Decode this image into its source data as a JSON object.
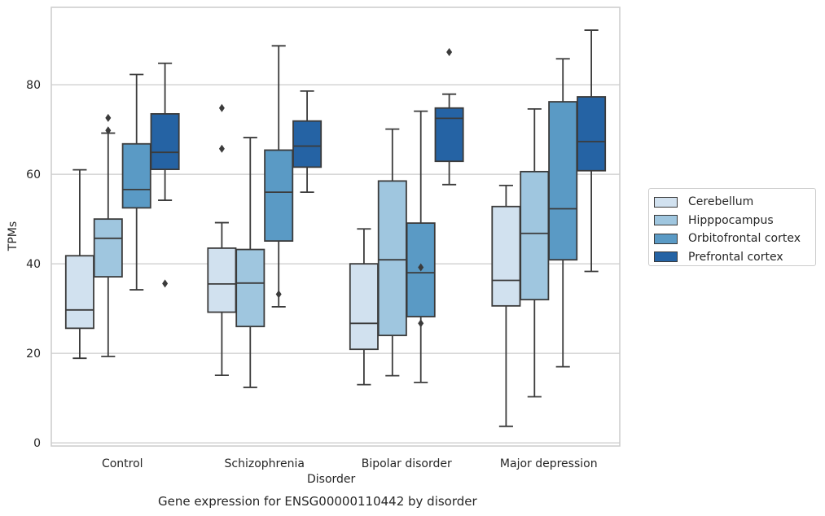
{
  "chart_data": {
    "type": "box",
    "title": "",
    "caption": "Gene expression for ENSG00000110442 by disorder",
    "xlabel": "Disorder",
    "ylabel": "TPMs",
    "ylim": [
      -0.7,
      97.3
    ],
    "yticks": [
      0,
      20,
      40,
      60,
      80
    ],
    "grid": "horizontal",
    "legend_position": "right",
    "categories": [
      "Control",
      "Schizophrenia",
      "Bipolar disorder",
      "Major depression"
    ],
    "series": [
      {
        "name": "Cerebellum",
        "color": "#d1e1ef",
        "boxes": [
          {
            "whisker_low": 18.9,
            "q1": 25.6,
            "median": 29.7,
            "q3": 41.8,
            "whisker_high": 61.0,
            "outliers": []
          },
          {
            "whisker_low": 15.1,
            "q1": 29.2,
            "median": 35.5,
            "q3": 43.5,
            "whisker_high": 49.2,
            "outliers": [
              74.8,
              65.7
            ]
          },
          {
            "whisker_low": 13.0,
            "q1": 20.9,
            "median": 26.7,
            "q3": 40.0,
            "whisker_high": 47.8,
            "outliers": []
          },
          {
            "whisker_low": 3.7,
            "q1": 30.6,
            "median": 36.3,
            "q3": 52.8,
            "whisker_high": 57.5,
            "outliers": []
          }
        ]
      },
      {
        "name": "Hipppocampus",
        "color": "#9fc6df",
        "boxes": [
          {
            "whisker_low": 19.3,
            "q1": 37.1,
            "median": 45.7,
            "q3": 50.0,
            "whisker_high": 69.2,
            "outliers": [
              72.6,
              69.8
            ]
          },
          {
            "whisker_low": 12.4,
            "q1": 26.0,
            "median": 35.7,
            "q3": 43.2,
            "whisker_high": 68.2,
            "outliers": []
          },
          {
            "whisker_low": 15.0,
            "q1": 24.0,
            "median": 40.9,
            "q3": 58.5,
            "whisker_high": 70.1,
            "outliers": []
          },
          {
            "whisker_low": 10.3,
            "q1": 32.0,
            "median": 46.8,
            "q3": 60.6,
            "whisker_high": 74.6,
            "outliers": []
          }
        ]
      },
      {
        "name": "Orbitofrontal cortex",
        "color": "#5a9ac5",
        "boxes": [
          {
            "whisker_low": 34.2,
            "q1": 52.5,
            "median": 56.6,
            "q3": 66.8,
            "whisker_high": 82.3,
            "outliers": []
          },
          {
            "whisker_low": 30.4,
            "q1": 45.1,
            "median": 56.0,
            "q3": 65.4,
            "whisker_high": 88.7,
            "outliers": [
              33.2
            ]
          },
          {
            "whisker_low": 13.5,
            "q1": 28.2,
            "median": 38.0,
            "q3": 49.1,
            "whisker_high": 74.1,
            "outliers": [
              39.2,
              26.7
            ]
          },
          {
            "whisker_low": 17.0,
            "q1": 40.9,
            "median": 52.3,
            "q3": 76.2,
            "whisker_high": 85.8,
            "outliers": []
          }
        ]
      },
      {
        "name": "Prefrontal cortex",
        "color": "#2563a4",
        "boxes": [
          {
            "whisker_low": 54.2,
            "q1": 61.1,
            "median": 64.9,
            "q3": 73.5,
            "whisker_high": 84.8,
            "outliers": [
              35.6
            ]
          },
          {
            "whisker_low": 56.0,
            "q1": 61.6,
            "median": 66.3,
            "q3": 71.9,
            "whisker_high": 78.6,
            "outliers": []
          },
          {
            "whisker_low": 57.7,
            "q1": 62.9,
            "median": 72.5,
            "q3": 74.8,
            "whisker_high": 77.9,
            "outliers": [
              87.3
            ]
          },
          {
            "whisker_low": 38.3,
            "q1": 60.8,
            "median": 67.3,
            "q3": 77.3,
            "whisker_high": 92.2,
            "outliers": []
          }
        ]
      }
    ]
  }
}
